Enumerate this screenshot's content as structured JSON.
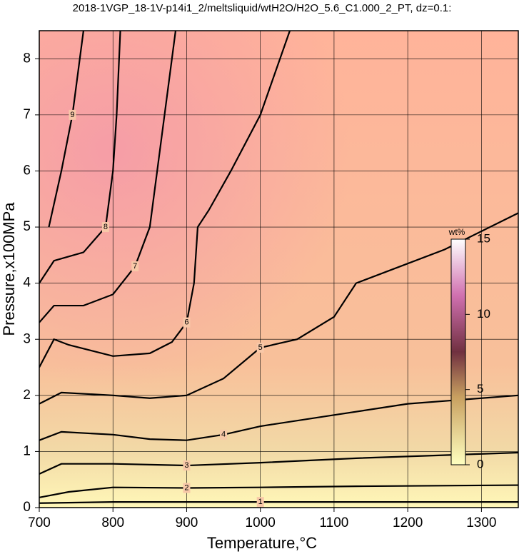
{
  "chart_data": {
    "type": "contour",
    "title": "2018-1VGP_18-1V-p14i1_2/meltsliquid/wtH2O/H2O_5.6_C1.000_2_PT, dz=0.1:",
    "x_label": "Temperature,°C",
    "y_label": "Pressure,x100MPa",
    "xlim": [
      700,
      1350
    ],
    "ylim": [
      0,
      8.5
    ],
    "xticks": [
      700,
      800,
      900,
      1000,
      1100,
      1200,
      1300
    ],
    "yticks": [
      0,
      1,
      2,
      3,
      4,
      5,
      6,
      7,
      8
    ],
    "grid": true,
    "contours": [
      {
        "level": 1,
        "x": [
          700,
          800,
          900,
          1000,
          1100,
          1200,
          1350
        ],
        "y": [
          0.08,
          0.1,
          0.1,
          0.1,
          0.1,
          0.1,
          0.1
        ]
      },
      {
        "level": 2,
        "x": [
          700,
          740,
          800,
          900,
          1000,
          1130,
          1350
        ],
        "y": [
          0.18,
          0.28,
          0.36,
          0.35,
          0.36,
          0.38,
          0.4
        ]
      },
      {
        "level": 3,
        "x": [
          700,
          730,
          800,
          900,
          1000,
          1130,
          1350
        ],
        "y": [
          0.6,
          0.78,
          0.78,
          0.75,
          0.8,
          0.88,
          0.98
        ]
      },
      {
        "level": 4,
        "x": [
          700,
          730,
          800,
          850,
          900,
          950,
          1000,
          1100,
          1200,
          1350
        ],
        "y": [
          1.2,
          1.35,
          1.3,
          1.22,
          1.2,
          1.3,
          1.45,
          1.65,
          1.85,
          2.0
        ]
      },
      {
        "level": 5,
        "x": [
          700,
          730,
          800,
          850,
          900,
          950,
          1000,
          1050,
          1100,
          1130,
          1170,
          1250,
          1350
        ],
        "y": [
          1.85,
          2.05,
          2.0,
          1.95,
          2.0,
          2.3,
          2.85,
          3.0,
          3.4,
          4.0,
          4.2,
          4.6,
          5.25
        ]
      },
      {
        "level": 6,
        "x": [
          700,
          720,
          740,
          800,
          850,
          880,
          900,
          910,
          915,
          930,
          960,
          1000,
          1040
        ],
        "y": [
          2.5,
          3.0,
          2.9,
          2.7,
          2.75,
          2.95,
          3.3,
          4.0,
          5.0,
          5.3,
          6.0,
          7.0,
          8.5
        ]
      },
      {
        "level": 7,
        "x": [
          700,
          720,
          760,
          800,
          830,
          850,
          860,
          870,
          885
        ],
        "y": [
          3.3,
          3.6,
          3.6,
          3.8,
          4.3,
          5.0,
          6.0,
          7.0,
          8.5
        ]
      },
      {
        "level": 8,
        "x": [
          700,
          720,
          760,
          790,
          800,
          805,
          810
        ],
        "y": [
          4.0,
          4.4,
          4.55,
          5.0,
          6.0,
          7.0,
          8.5
        ]
      },
      {
        "level": 9,
        "x": [
          713,
          730,
          745,
          755,
          760
        ],
        "y": [
          5.0,
          6.0,
          7.0,
          8.0,
          8.5
        ]
      }
    ],
    "colorbar": {
      "label": "wt%",
      "lim": [
        0,
        15
      ],
      "ticks": [
        0,
        5,
        10,
        15
      ]
    }
  }
}
